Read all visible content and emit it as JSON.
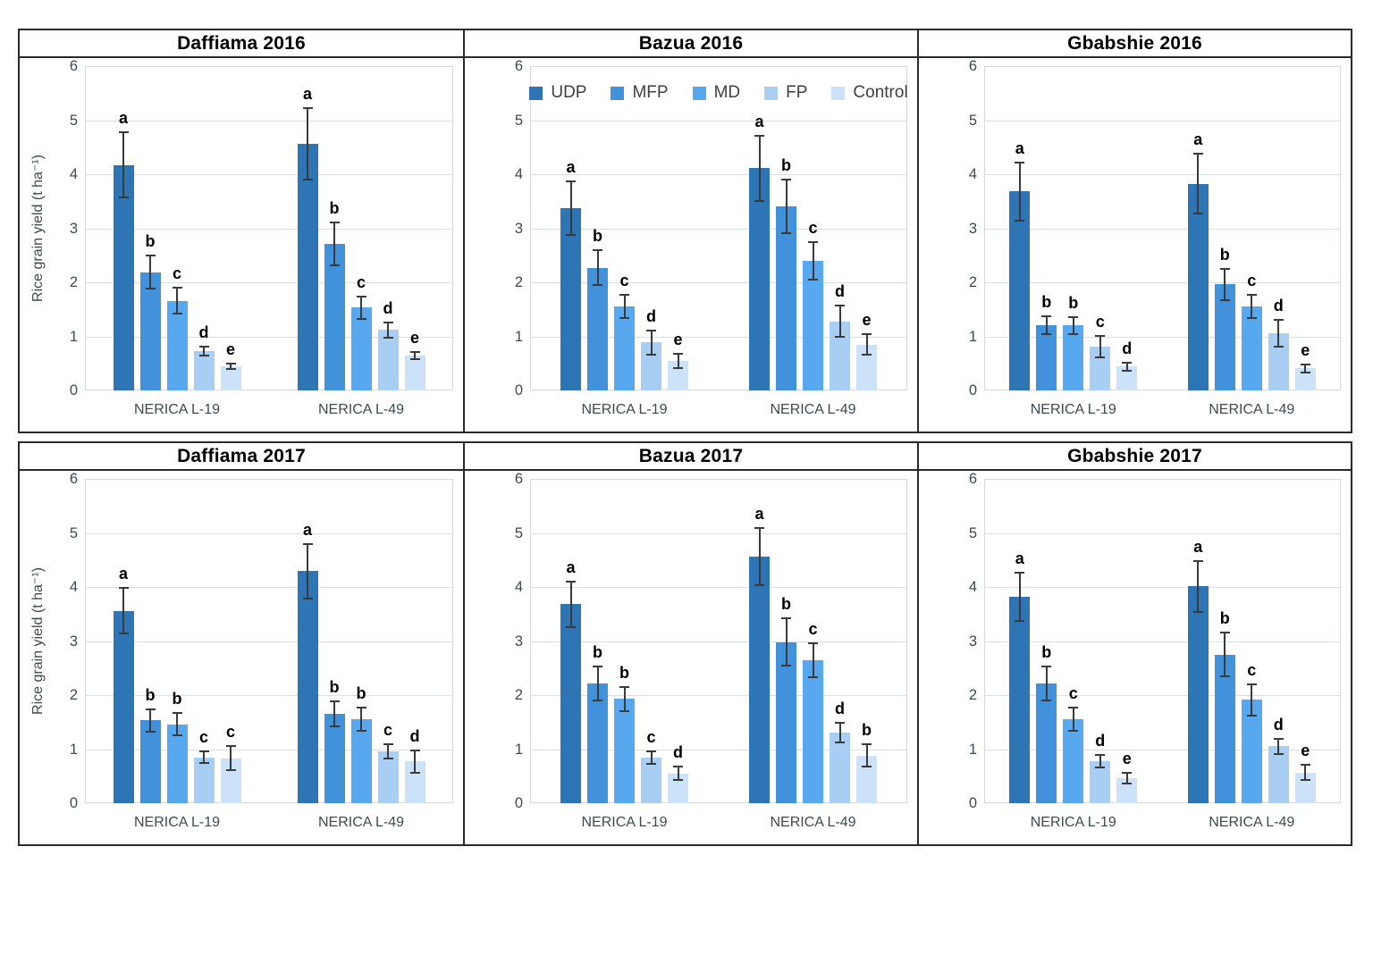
{
  "figure": {
    "ylabel": "Rice grain yield (t ha⁻¹)",
    "series_names": [
      "UDP",
      "MFP",
      "MD",
      "FP",
      "Control"
    ],
    "series_colors": [
      "#2E75B6",
      "#4191DB",
      "#58A8F0",
      "#A9CEF3",
      "#CBE2F8"
    ],
    "axis_text_color": "#3E4A4E",
    "grid_color": "#DADFDF",
    "error_bar_color": "#3A3A3A"
  },
  "legend": {
    "labels": [
      "UDP",
      "MFP",
      "MD",
      "FP",
      "Control"
    ]
  },
  "chart_data": [
    {
      "type": "bar",
      "title": "Daffiama 2016",
      "ylabel": "Rice grain yield (t ha⁻¹)",
      "show_ylabel": true,
      "show_legend": false,
      "ylim": [
        0,
        6
      ],
      "yticks": [
        0,
        1,
        2,
        3,
        4,
        5,
        6
      ],
      "grid": true,
      "categories": [
        "NERICA L-19",
        "NERICA L-49"
      ],
      "series": [
        {
          "name": "UDP",
          "values": [
            4.17,
            4.56
          ],
          "errors": [
            0.62,
            0.68
          ],
          "letters": [
            "a",
            "a"
          ]
        },
        {
          "name": "MFP",
          "values": [
            2.19,
            2.71
          ],
          "errors": [
            0.33,
            0.41
          ],
          "letters": [
            "b",
            "b"
          ]
        },
        {
          "name": "MD",
          "values": [
            1.66,
            1.53
          ],
          "errors": [
            0.25,
            0.23
          ],
          "letters": [
            "c",
            "c"
          ]
        },
        {
          "name": "FP",
          "values": [
            0.73,
            1.12
          ],
          "errors": [
            0.1,
            0.16
          ],
          "letters": [
            "d",
            "d"
          ]
        },
        {
          "name": "Control",
          "values": [
            0.45,
            0.65
          ],
          "errors": [
            0.07,
            0.08
          ],
          "letters": [
            "e",
            "e"
          ]
        }
      ]
    },
    {
      "type": "bar",
      "title": "Bazua 2016",
      "ylabel": "",
      "show_ylabel": false,
      "show_legend": true,
      "ylim": [
        0,
        6
      ],
      "yticks": [
        0,
        1,
        2,
        3,
        4,
        5,
        6
      ],
      "grid": true,
      "categories": [
        "NERICA L-19",
        "NERICA L-49"
      ],
      "series": [
        {
          "name": "UDP",
          "values": [
            3.37,
            4.11
          ],
          "errors": [
            0.51,
            0.62
          ],
          "letters": [
            "a",
            "a"
          ]
        },
        {
          "name": "MFP",
          "values": [
            2.27,
            3.41
          ],
          "errors": [
            0.34,
            0.51
          ],
          "letters": [
            "b",
            "b"
          ]
        },
        {
          "name": "MD",
          "values": [
            1.55,
            2.4
          ],
          "errors": [
            0.23,
            0.36
          ],
          "letters": [
            "c",
            "c"
          ]
        },
        {
          "name": "FP",
          "values": [
            0.89,
            1.28
          ],
          "errors": [
            0.24,
            0.31
          ],
          "letters": [
            "d",
            "d"
          ]
        },
        {
          "name": "Control",
          "values": [
            0.55,
            0.85
          ],
          "errors": [
            0.15,
            0.21
          ],
          "letters": [
            "e",
            "e"
          ]
        }
      ]
    },
    {
      "type": "bar",
      "title": "Gbabshie 2016",
      "ylabel": "",
      "show_ylabel": false,
      "show_legend": false,
      "ylim": [
        0,
        6
      ],
      "yticks": [
        0,
        1,
        2,
        3,
        4,
        5,
        6
      ],
      "grid": true,
      "categories": [
        "NERICA L-19",
        "NERICA L-49"
      ],
      "series": [
        {
          "name": "UDP",
          "values": [
            3.68,
            3.82
          ],
          "errors": [
            0.55,
            0.57
          ],
          "letters": [
            "a",
            "a"
          ]
        },
        {
          "name": "MFP",
          "values": [
            1.21,
            1.96
          ],
          "errors": [
            0.18,
            0.3
          ],
          "letters": [
            "b",
            "b"
          ]
        },
        {
          "name": "MD",
          "values": [
            1.2,
            1.55
          ],
          "errors": [
            0.18,
            0.23
          ],
          "letters": [
            "b",
            "c"
          ]
        },
        {
          "name": "FP",
          "values": [
            0.81,
            1.06
          ],
          "errors": [
            0.21,
            0.26
          ],
          "letters": [
            "c",
            "d"
          ]
        },
        {
          "name": "Control",
          "values": [
            0.44,
            0.41
          ],
          "errors": [
            0.09,
            0.09
          ],
          "letters": [
            "d",
            "e"
          ]
        }
      ]
    },
    {
      "type": "bar",
      "title": "Daffiama 2017",
      "ylabel": "Rice grain yield (t ha⁻¹)",
      "show_ylabel": true,
      "show_legend": false,
      "ylim": [
        0,
        6
      ],
      "yticks": [
        0,
        1,
        2,
        3,
        4,
        5,
        6
      ],
      "grid": true,
      "categories": [
        "NERICA L-19",
        "NERICA L-49"
      ],
      "series": [
        {
          "name": "UDP",
          "values": [
            3.56,
            4.29
          ],
          "errors": [
            0.44,
            0.52
          ],
          "letters": [
            "a",
            "a"
          ]
        },
        {
          "name": "MFP",
          "values": [
            1.53,
            1.65
          ],
          "errors": [
            0.23,
            0.25
          ],
          "letters": [
            "b",
            "b"
          ]
        },
        {
          "name": "MD",
          "values": [
            1.46,
            1.55
          ],
          "errors": [
            0.22,
            0.23
          ],
          "letters": [
            "b",
            "b"
          ]
        },
        {
          "name": "FP",
          "values": [
            0.85,
            0.96
          ],
          "errors": [
            0.13,
            0.15
          ],
          "letters": [
            "c",
            "c"
          ]
        },
        {
          "name": "Control",
          "values": [
            0.83,
            0.77
          ],
          "errors": [
            0.24,
            0.23
          ],
          "letters": [
            "c",
            "d"
          ]
        }
      ]
    },
    {
      "type": "bar",
      "title": "Bazua 2017",
      "ylabel": "",
      "show_ylabel": false,
      "show_legend": false,
      "ylim": [
        0,
        6
      ],
      "yticks": [
        0,
        1,
        2,
        3,
        4,
        5,
        6
      ],
      "grid": true,
      "categories": [
        "NERICA L-19",
        "NERICA L-49"
      ],
      "series": [
        {
          "name": "UDP",
          "values": [
            3.68,
            4.56
          ],
          "errors": [
            0.44,
            0.54
          ],
          "letters": [
            "a",
            "a"
          ]
        },
        {
          "name": "MFP",
          "values": [
            2.21,
            2.98
          ],
          "errors": [
            0.33,
            0.45
          ],
          "letters": [
            "b",
            "b"
          ]
        },
        {
          "name": "MD",
          "values": [
            1.93,
            2.65
          ],
          "errors": [
            0.24,
            0.33
          ],
          "letters": [
            "b",
            "c"
          ]
        },
        {
          "name": "FP",
          "values": [
            0.84,
            1.31
          ],
          "errors": [
            0.13,
            0.2
          ],
          "letters": [
            "c",
            "d"
          ]
        },
        {
          "name": "Control",
          "values": [
            0.55,
            0.88
          ],
          "errors": [
            0.14,
            0.22
          ],
          "letters": [
            "d",
            "b"
          ]
        }
      ]
    },
    {
      "type": "bar",
      "title": "Gbabshie 2017",
      "ylabel": "",
      "show_ylabel": false,
      "show_legend": false,
      "ylim": [
        0,
        6
      ],
      "yticks": [
        0,
        1,
        2,
        3,
        4,
        5,
        6
      ],
      "grid": true,
      "categories": [
        "NERICA L-19",
        "NERICA L-49"
      ],
      "series": [
        {
          "name": "UDP",
          "values": [
            3.82,
            4.01
          ],
          "errors": [
            0.46,
            0.49
          ],
          "letters": [
            "a",
            "a"
          ]
        },
        {
          "name": "MFP",
          "values": [
            2.22,
            2.75
          ],
          "errors": [
            0.33,
            0.42
          ],
          "letters": [
            "b",
            "b"
          ]
        },
        {
          "name": "MD",
          "values": [
            1.55,
            1.91
          ],
          "errors": [
            0.23,
            0.3
          ],
          "letters": [
            "c",
            "c"
          ]
        },
        {
          "name": "FP",
          "values": [
            0.78,
            1.05
          ],
          "errors": [
            0.13,
            0.16
          ],
          "letters": [
            "d",
            "d"
          ]
        },
        {
          "name": "Control",
          "values": [
            0.46,
            0.57
          ],
          "errors": [
            0.12,
            0.16
          ],
          "letters": [
            "e",
            "e"
          ]
        }
      ]
    }
  ]
}
